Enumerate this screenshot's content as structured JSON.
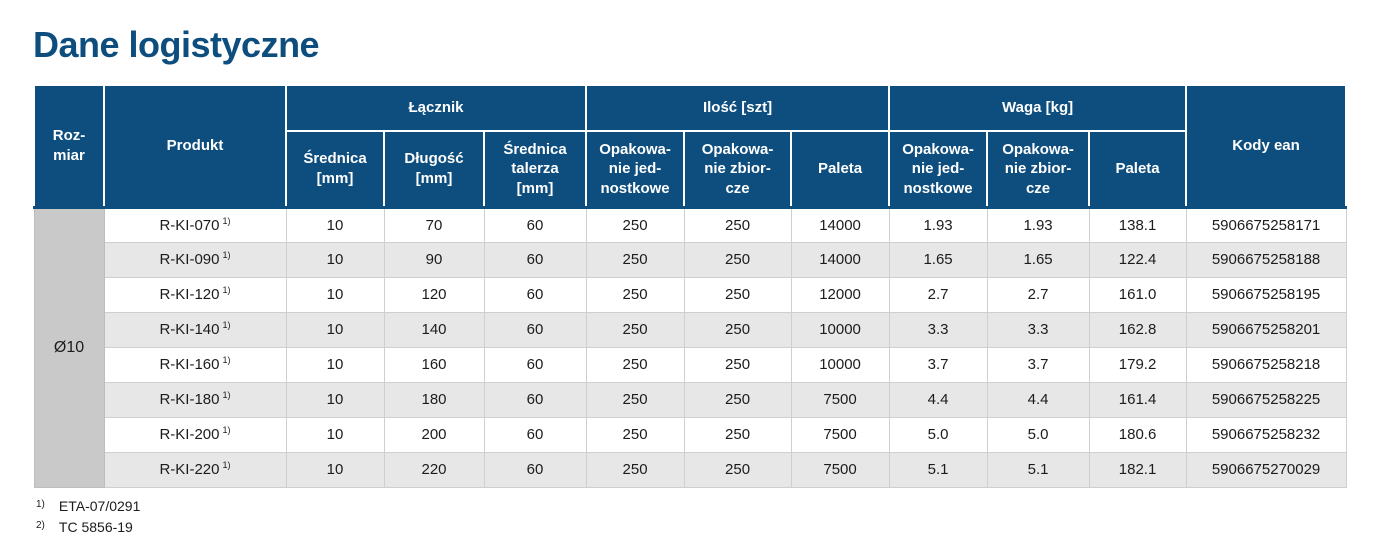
{
  "page": {
    "title": "Dane logistyczne"
  },
  "colors": {
    "header_navy": "#0e4e7e",
    "row_stripe": "#e7e7e7",
    "size_column_gray": "#c9c9c9",
    "grid_line": "#cfcfcf"
  },
  "table": {
    "header": {
      "rozmiar": "Roz-\nmiar",
      "produkt": "Produkt",
      "groups": [
        {
          "label": "Łącznik",
          "cols": [
            "Średnica\n[mm]",
            "Długość\n[mm]",
            "Średnica\ntalerza\n[mm]"
          ]
        },
        {
          "label": "Ilość [szt]",
          "cols": [
            "Opakowa-\nnie jed-\nnostkowe",
            "Opakowa-\nnie zbior-\ncze",
            "Paleta"
          ]
        },
        {
          "label": "Waga [kg]",
          "cols": [
            "Opakowa-\nnie jed-\nnostkowe",
            "Opakowa-\nnie zbior-\ncze",
            "Paleta"
          ]
        }
      ],
      "kody_ean": "Kody ean"
    },
    "size_group": "Ø10",
    "value_column_names": [
      "srednica-mm",
      "dlugosc-mm",
      "srednica-talerza-mm",
      "ilosc-opakowanie-jednostkowe",
      "ilosc-opakowanie-zbiorcze",
      "ilosc-paleta",
      "waga-opakowanie-jednostkowe",
      "waga-opakowanie-zbiorcze",
      "waga-paleta",
      "kody-ean"
    ],
    "rows": [
      {
        "produkt": "R-KI-070",
        "sup": "1)",
        "values": [
          "10",
          "70",
          "60",
          "250",
          "250",
          "14000",
          "1.93",
          "1.93",
          "138.1",
          "5906675258171"
        ]
      },
      {
        "produkt": "R-KI-090",
        "sup": "1)",
        "values": [
          "10",
          "90",
          "60",
          "250",
          "250",
          "14000",
          "1.65",
          "1.65",
          "122.4",
          "5906675258188"
        ]
      },
      {
        "produkt": "R-KI-120",
        "sup": "1)",
        "values": [
          "10",
          "120",
          "60",
          "250",
          "250",
          "12000",
          "2.7",
          "2.7",
          "161.0",
          "5906675258195"
        ]
      },
      {
        "produkt": "R-KI-140",
        "sup": "1)",
        "values": [
          "10",
          "140",
          "60",
          "250",
          "250",
          "10000",
          "3.3",
          "3.3",
          "162.8",
          "5906675258201"
        ]
      },
      {
        "produkt": "R-KI-160",
        "sup": "1)",
        "values": [
          "10",
          "160",
          "60",
          "250",
          "250",
          "10000",
          "3.7",
          "3.7",
          "179.2",
          "5906675258218"
        ]
      },
      {
        "produkt": "R-KI-180",
        "sup": "1)",
        "values": [
          "10",
          "180",
          "60",
          "250",
          "250",
          "7500",
          "4.4",
          "4.4",
          "161.4",
          "5906675258225"
        ]
      },
      {
        "produkt": "R-KI-200",
        "sup": "1)",
        "values": [
          "10",
          "200",
          "60",
          "250",
          "250",
          "7500",
          "5.0",
          "5.0",
          "180.6",
          "5906675258232"
        ]
      },
      {
        "produkt": "R-KI-220",
        "sup": "1)",
        "values": [
          "10",
          "220",
          "60",
          "250",
          "250",
          "7500",
          "5.1",
          "5.1",
          "182.1",
          "5906675270029"
        ]
      }
    ]
  },
  "footnotes": [
    {
      "sup": "1)",
      "text": "ETA-07/0291"
    },
    {
      "sup": "2)",
      "text": "TC 5856-19"
    }
  ]
}
